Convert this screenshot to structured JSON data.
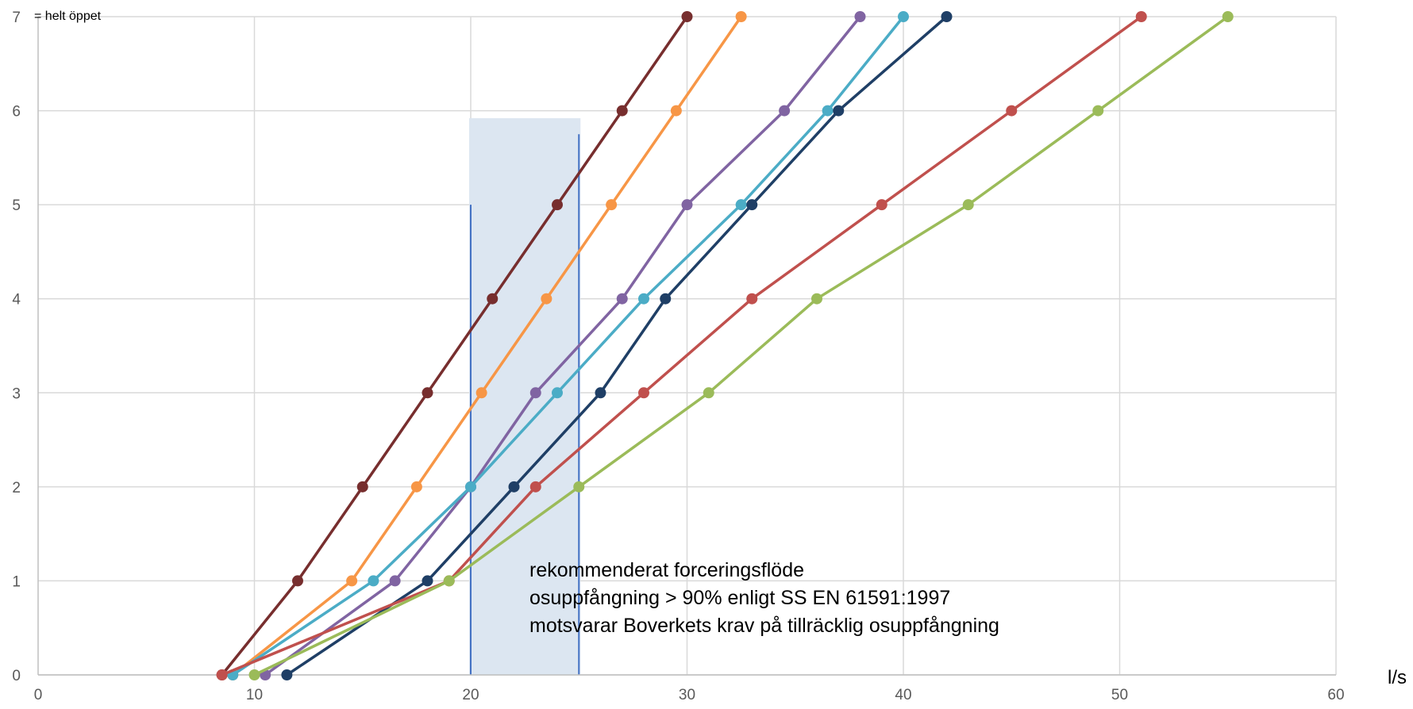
{
  "chart_data": {
    "type": "line",
    "xlabel": "l/s",
    "ylabel": "",
    "xlim": [
      0,
      60
    ],
    "ylim": [
      0,
      7
    ],
    "xticks": [
      "0",
      "10",
      "20",
      "30",
      "40",
      "50",
      "60"
    ],
    "yticks": [
      "0",
      "1",
      "2",
      "3",
      "4",
      "5",
      "6",
      "7"
    ],
    "grid": true,
    "annotations": {
      "top_note": "= helt öppet",
      "box_lines": [
        "rekommenderat forceringsflöde",
        "osuppfångning  > 90% enligt SS EN 61591:1997",
        "motsvarar Boverkets krav på tillräcklig osuppfångning"
      ],
      "recommended_range": [
        20,
        25
      ]
    },
    "series": [
      {
        "color": "#772E2E",
        "points": [
          [
            8.5,
            0
          ],
          [
            12,
            1
          ],
          [
            15,
            2
          ],
          [
            18,
            3
          ],
          [
            21,
            4
          ],
          [
            24,
            5
          ],
          [
            27,
            6
          ],
          [
            30,
            7
          ]
        ]
      },
      {
        "color": "#F79646",
        "points": [
          [
            9,
            0
          ],
          [
            14.5,
            1
          ],
          [
            17.5,
            2
          ],
          [
            20.5,
            3
          ],
          [
            23.5,
            4
          ],
          [
            26.5,
            5
          ],
          [
            29.5,
            6
          ],
          [
            32.5,
            7
          ]
        ]
      },
      {
        "color": "#8064A2",
        "points": [
          [
            10.5,
            0
          ],
          [
            16.5,
            1
          ],
          [
            20,
            2
          ],
          [
            23,
            3
          ],
          [
            27,
            4
          ],
          [
            30,
            5
          ],
          [
            34.5,
            6
          ],
          [
            38,
            7
          ]
        ]
      },
      {
        "color": "#4BACC6",
        "points": [
          [
            9,
            0
          ],
          [
            15.5,
            1
          ],
          [
            20,
            2
          ],
          [
            24,
            3
          ],
          [
            28,
            4
          ],
          [
            32.5,
            5
          ],
          [
            36.5,
            6
          ],
          [
            40,
            7
          ]
        ]
      },
      {
        "color": "#1F3F66",
        "points": [
          [
            11.5,
            0
          ],
          [
            18,
            1
          ],
          [
            22,
            2
          ],
          [
            26,
            3
          ],
          [
            29,
            4
          ],
          [
            33,
            5
          ],
          [
            37,
            6
          ],
          [
            42,
            7
          ]
        ]
      },
      {
        "color": "#C0504D",
        "points": [
          [
            8.5,
            0
          ],
          [
            19,
            1
          ],
          [
            23,
            2
          ],
          [
            28,
            3
          ],
          [
            33,
            4
          ],
          [
            39,
            5
          ],
          [
            45,
            6
          ],
          [
            51,
            7
          ]
        ]
      },
      {
        "color": "#9BBB59",
        "points": [
          [
            10,
            0
          ],
          [
            19,
            1
          ],
          [
            25,
            2
          ],
          [
            31,
            3
          ],
          [
            36,
            4
          ],
          [
            43,
            5
          ],
          [
            49,
            6
          ],
          [
            55,
            7
          ]
        ]
      }
    ]
  }
}
